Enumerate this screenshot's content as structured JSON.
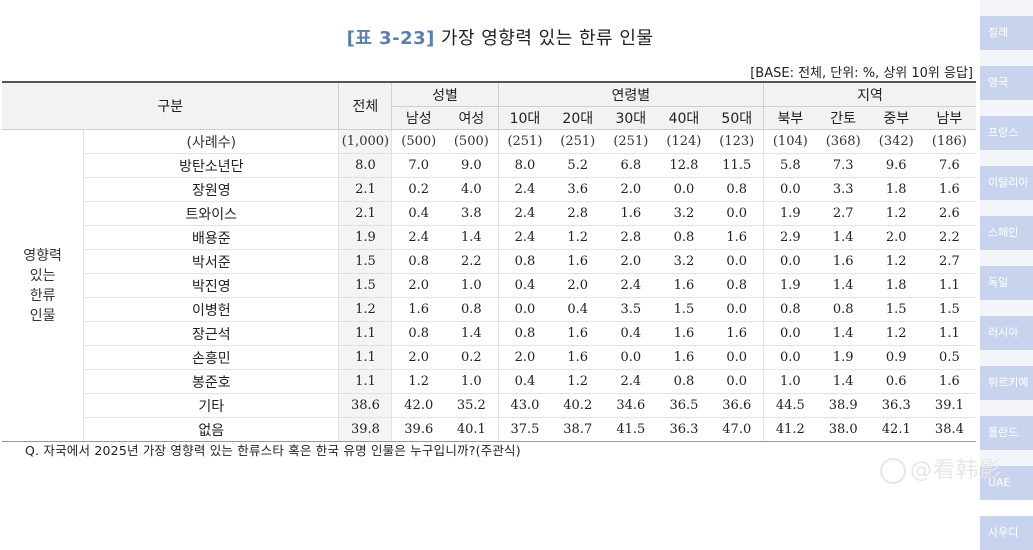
{
  "title_tag": "[표 3-23]",
  "title_text": "가장 영향력 있는 한류 인물",
  "base_note": "[BASE: 전체, 단위: %, 상위 10위 응답]",
  "header": {
    "category": "구분",
    "total": "전체",
    "groups": {
      "gender": "성별",
      "age": "연령별",
      "region": "지역"
    },
    "sub": [
      "남성",
      "여성",
      "10대",
      "20대",
      "30대",
      "40대",
      "50대",
      "북부",
      "간토",
      "중부",
      "남부"
    ]
  },
  "group_label": "영향력 있는 한류 인물",
  "rows": [
    {
      "name": "(사례수)",
      "values": [
        "(1,000)",
        "(500)",
        "(500)",
        "(251)",
        "(251)",
        "(251)",
        "(124)",
        "(123)",
        "(104)",
        "(368)",
        "(342)",
        "(186)"
      ]
    },
    {
      "name": "방탄소년단",
      "values": [
        "8.0",
        "7.0",
        "9.0",
        "8.0",
        "5.2",
        "6.8",
        "12.8",
        "11.5",
        "5.8",
        "7.3",
        "9.6",
        "7.6"
      ]
    },
    {
      "name": "장원영",
      "values": [
        "2.1",
        "0.2",
        "4.0",
        "2.4",
        "3.6",
        "2.0",
        "0.0",
        "0.8",
        "0.0",
        "3.3",
        "1.8",
        "1.6"
      ]
    },
    {
      "name": "트와이스",
      "values": [
        "2.1",
        "0.4",
        "3.8",
        "2.4",
        "2.8",
        "1.6",
        "3.2",
        "0.0",
        "1.9",
        "2.7",
        "1.2",
        "2.6"
      ]
    },
    {
      "name": "배용준",
      "values": [
        "1.9",
        "2.4",
        "1.4",
        "2.4",
        "1.2",
        "2.8",
        "0.8",
        "1.6",
        "2.9",
        "1.4",
        "2.0",
        "2.2"
      ]
    },
    {
      "name": "박서준",
      "values": [
        "1.5",
        "0.8",
        "2.2",
        "0.8",
        "1.6",
        "2.0",
        "3.2",
        "0.0",
        "0.0",
        "1.6",
        "1.2",
        "2.7"
      ]
    },
    {
      "name": "박진영",
      "values": [
        "1.5",
        "2.0",
        "1.0",
        "0.4",
        "2.0",
        "2.4",
        "1.6",
        "0.8",
        "1.9",
        "1.4",
        "1.8",
        "1.1"
      ]
    },
    {
      "name": "이병헌",
      "values": [
        "1.2",
        "1.6",
        "0.8",
        "0.0",
        "0.4",
        "3.5",
        "1.5",
        "0.0",
        "0.8",
        "0.8",
        "1.5",
        "1.5"
      ]
    },
    {
      "name": "장근석",
      "values": [
        "1.1",
        "0.8",
        "1.4",
        "0.8",
        "1.6",
        "0.4",
        "1.6",
        "1.6",
        "0.0",
        "1.4",
        "1.2",
        "1.1"
      ]
    },
    {
      "name": "손흥민",
      "values": [
        "1.1",
        "2.0",
        "0.2",
        "2.0",
        "1.6",
        "0.0",
        "1.6",
        "0.0",
        "0.0",
        "1.9",
        "0.9",
        "0.5"
      ]
    },
    {
      "name": "봉준호",
      "values": [
        "1.1",
        "1.2",
        "1.0",
        "0.4",
        "1.2",
        "2.4",
        "0.8",
        "0.0",
        "1.0",
        "1.4",
        "0.6",
        "1.6"
      ]
    },
    {
      "name": "기타",
      "values": [
        "38.6",
        "42.0",
        "35.2",
        "43.0",
        "40.2",
        "34.6",
        "36.5",
        "36.6",
        "44.5",
        "38.9",
        "36.3",
        "39.1"
      ]
    },
    {
      "name": "없음",
      "values": [
        "39.8",
        "39.6",
        "40.1",
        "37.5",
        "38.7",
        "41.5",
        "36.3",
        "47.0",
        "41.2",
        "38.0",
        "42.1",
        "38.4"
      ]
    }
  ],
  "question": "Q. 자국에서 2025년 가장 영향력 있는 한류스타 혹은 한국 유명 인물은 누구입니까?(주관식)",
  "side_nav": [
    "칠레",
    "영국",
    "프랑스",
    "이탈리아",
    "스페인",
    "독일",
    "러시아",
    "튀르키예",
    "폴란드",
    "UAE",
    "사우디"
  ],
  "watermark": "@看韩影"
}
